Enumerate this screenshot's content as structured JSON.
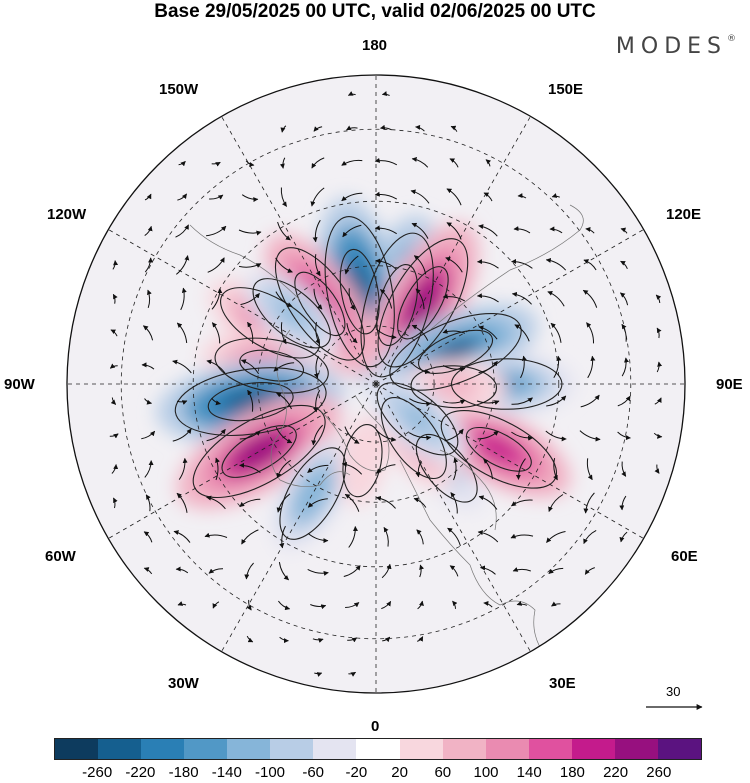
{
  "title": "Base 29/05/2025 00 UTC, valid 02/06/2025 00 UTC",
  "logo": "MODES",
  "logo_mark": "®",
  "longitude_labels": {
    "n180": "180",
    "w150": "150W",
    "e150": "150E",
    "w120": "120W",
    "e120": "120E",
    "w90": "90W",
    "e90": "90E",
    "w60": "60W",
    "e60": "60E",
    "w30": "30W",
    "e30": "30E",
    "s0": "0"
  },
  "reference_vector": {
    "value": "30"
  },
  "colorbar": {
    "colors": [
      "#0d3b5e",
      "#155f8f",
      "#2a7fb5",
      "#5198c6",
      "#86b5d9",
      "#b8cde6",
      "#e4e4f1",
      "#ffffff",
      "#f8d7de",
      "#f1b3c5",
      "#ea8bb1",
      "#e0519f",
      "#c41b8c",
      "#97107f",
      "#5b1380"
    ],
    "tick_labels": [
      "-260",
      "-220",
      "-180",
      "-140",
      "-100",
      "-60",
      "-20",
      "20",
      "60",
      "100",
      "140",
      "180",
      "220",
      "260"
    ]
  },
  "anomaly_centers": [
    {
      "lat": 69,
      "lon": 165,
      "value": -240
    },
    {
      "lat": 66,
      "lon": -170,
      "value": -250
    },
    {
      "lat": 66,
      "lon": 150,
      "value": 230
    },
    {
      "lat": 65,
      "lon": -145,
      "value": 200
    },
    {
      "lat": 68,
      "lon": 112,
      "value": -220
    },
    {
      "lat": 59,
      "lon": -120,
      "value": 150
    },
    {
      "lat": 63,
      "lon": -100,
      "value": 160
    },
    {
      "lat": 58,
      "lon": -82,
      "value": -250
    },
    {
      "lat": 56,
      "lon": -60,
      "value": 240
    },
    {
      "lat": 58,
      "lon": -30,
      "value": -130
    },
    {
      "lat": 62,
      "lon": 40,
      "value": -80
    },
    {
      "lat": 55,
      "lon": 62,
      "value": 190
    },
    {
      "lat": 57,
      "lon": 90,
      "value": -150
    },
    {
      "lat": 70,
      "lon": 88,
      "value": 90
    },
    {
      "lat": 73,
      "lon": 35,
      "value": 110
    },
    {
      "lat": 76,
      "lon": 50,
      "value": -120
    },
    {
      "lat": 62,
      "lon": -130,
      "value": -110
    },
    {
      "lat": 70,
      "lon": -10,
      "value": 60
    }
  ]
}
